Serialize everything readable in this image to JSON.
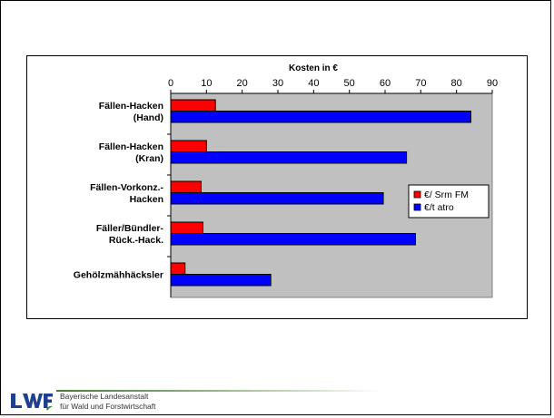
{
  "chart_data": {
    "type": "bar",
    "orientation": "horizontal",
    "title": "Kosten in €",
    "categories": [
      [
        "Fällen-Hacken",
        "(Hand)"
      ],
      [
        "Fällen-Hacken",
        "(Kran)"
      ],
      [
        "Fällen-Vorkonz.-",
        "Hacken"
      ],
      [
        "Fäller/Bündler-",
        "Rück.-Hack."
      ],
      [
        "Gehölzmähhäcksler"
      ]
    ],
    "series": [
      {
        "name": "€/ Srm FM",
        "color": "#ff0000",
        "values": [
          12.5,
          10,
          8.5,
          9,
          4
        ]
      },
      {
        "name": "€/t atro",
        "color": "#0000ff",
        "values": [
          84,
          66,
          59.5,
          68.5,
          28
        ]
      }
    ],
    "xlim": [
      0,
      90
    ],
    "xticks": [
      0,
      10,
      20,
      30,
      40,
      50,
      60,
      70,
      80,
      90
    ],
    "xaxis_position": "top",
    "grid": false,
    "plot_background": "#c0c0c0",
    "legend_position": "right"
  },
  "footer": {
    "line1": "Bayerische Landesanstalt",
    "line2": "für Wald und Forstwirtschaft"
  },
  "logo_colors": {
    "primary": "#1f3f8f",
    "accent": "#3a8a3a"
  }
}
